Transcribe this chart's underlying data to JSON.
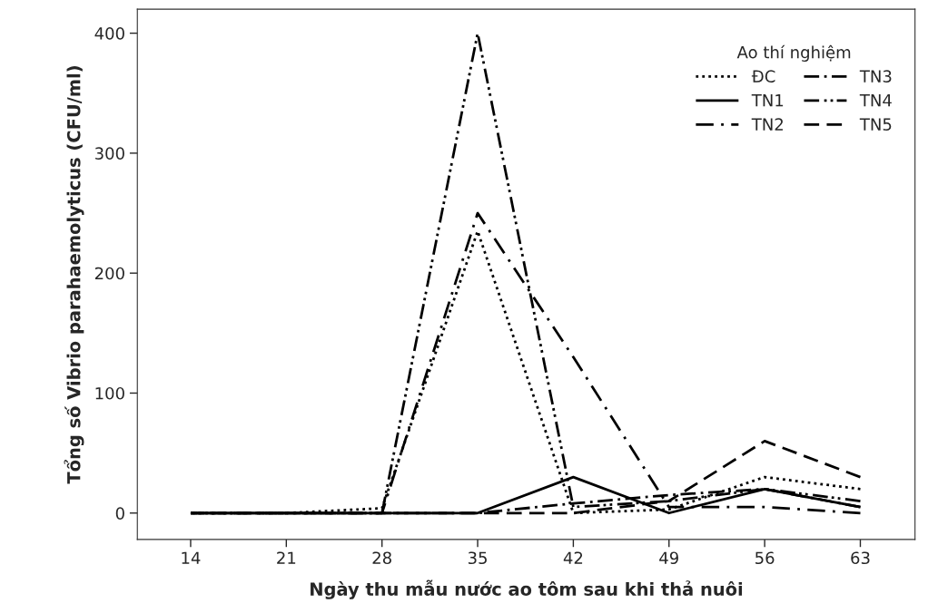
{
  "chart_data": {
    "type": "line",
    "xlabel": "Ngày thu mẫu nước ao tôm sau khi thả nuôi",
    "ylabel": "Tổng số Vibrio parahaemolyticus (CFU/ml)",
    "legend_title": "Ao thí nghiệm",
    "legend": "top right",
    "grid": false,
    "marker": "none",
    "x": [
      14,
      21,
      28,
      35,
      42,
      49,
      56,
      63
    ],
    "xlim": [
      10.1,
      67
    ],
    "xticks": [
      14,
      21,
      28,
      35,
      42,
      49,
      56,
      63
    ],
    "ylim": [
      -22,
      420
    ],
    "yticks": [
      0,
      100,
      200,
      300,
      400
    ],
    "series": [
      {
        "name": "ĐC",
        "color": "#000000",
        "line_style": "dotted",
        "values": [
          0,
          0,
          4,
          235,
          0,
          3,
          30,
          20
        ]
      },
      {
        "name": "TN1",
        "color": "#000000",
        "line_style": "solid",
        "values": [
          0,
          0,
          0,
          0,
          30,
          0,
          20,
          5
        ]
      },
      {
        "name": "TN2",
        "color": "#000000",
        "line_style": "dashdot",
        "values": [
          0,
          0,
          0,
          250,
          130,
          5,
          5,
          0
        ]
      },
      {
        "name": "TN3",
        "color": "#000000",
        "line_style": "dashdotdash",
        "values": [
          0,
          0,
          0,
          0,
          8,
          15,
          20,
          5
        ]
      },
      {
        "name": "TN4",
        "color": "#000000",
        "line_style": "dashdotdot",
        "values": [
          0,
          0,
          0,
          400,
          5,
          10,
          20,
          10
        ]
      },
      {
        "name": "TN5",
        "color": "#000000",
        "line_style": "dashed",
        "values": [
          0,
          0,
          0,
          0,
          0,
          10,
          60,
          30
        ]
      }
    ]
  }
}
